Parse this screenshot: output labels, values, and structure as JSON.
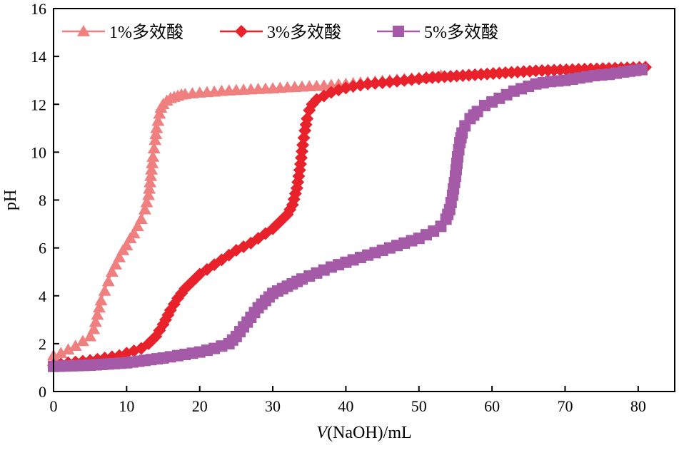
{
  "chart_data": {
    "type": "line",
    "title": "",
    "xlabel_italic": "V",
    "xlabel_rest": "(NaOH)/mL",
    "ylabel": "pH",
    "xlim": [
      0,
      85
    ],
    "ylim": [
      0,
      16
    ],
    "xticks": [
      0,
      10,
      20,
      30,
      40,
      50,
      60,
      70,
      80
    ],
    "yticks": [
      0,
      2,
      4,
      6,
      8,
      10,
      12,
      14,
      16
    ],
    "xtick_labels": [
      "0",
      "10",
      "20",
      "30",
      "40",
      "50",
      "60",
      "70",
      "80"
    ],
    "ytick_labels": [
      "0",
      "2",
      "4",
      "6",
      "8",
      "10",
      "12",
      "14",
      "16"
    ],
    "grid": false,
    "legend_position": "top-left",
    "series": [
      {
        "name": "1%多效酸",
        "color": "#f08080",
        "marker": "triangle",
        "x": [
          0,
          1,
          2,
          3,
          4,
          5,
          5.5,
          6,
          6.5,
          7,
          7.5,
          8,
          8.5,
          9,
          9.5,
          10,
          10.5,
          11,
          11.5,
          12,
          12.5,
          13,
          13.3,
          13.6,
          13.9,
          14.1,
          14.3,
          14.5,
          14.7,
          15,
          15.5,
          16,
          16.5,
          17,
          17.5,
          18,
          19,
          20,
          21,
          22,
          23,
          24,
          26,
          28,
          30,
          32,
          34,
          36,
          38,
          40,
          42,
          44,
          46,
          48,
          50,
          52,
          53
        ],
        "y": [
          1.5,
          1.6,
          1.75,
          1.9,
          2.1,
          2.3,
          2.6,
          3.2,
          3.8,
          4.2,
          4.6,
          5.0,
          5.3,
          5.6,
          5.9,
          6.1,
          6.4,
          6.6,
          6.9,
          7.2,
          7.6,
          8.2,
          9.0,
          9.8,
          10.5,
          11.0,
          11.3,
          11.6,
          11.85,
          12.0,
          12.15,
          12.25,
          12.3,
          12.35,
          12.4,
          12.42,
          12.45,
          12.48,
          12.5,
          12.52,
          12.55,
          12.57,
          12.6,
          12.63,
          12.66,
          12.7,
          12.73,
          12.76,
          12.8,
          12.85,
          12.9,
          12.95,
          13.0,
          13.05,
          13.1,
          13.15,
          13.2
        ]
      },
      {
        "name": "3%多效酸",
        "color": "#e8212b",
        "marker": "diamond",
        "x": [
          0,
          2,
          5,
          7,
          9,
          10,
          11,
          12,
          13,
          14,
          15,
          16,
          17,
          18,
          19,
          20,
          21,
          22,
          23,
          24,
          25,
          26,
          27,
          28,
          29,
          30,
          31,
          32,
          32.7,
          33.3,
          33.8,
          34.1,
          34.4,
          34.7,
          35.0,
          35.4,
          36,
          37,
          38,
          39,
          40,
          41,
          42,
          43,
          45,
          48,
          51,
          56,
          61,
          66,
          71,
          76,
          81
        ],
        "y": [
          1.1,
          1.2,
          1.3,
          1.4,
          1.5,
          1.6,
          1.7,
          1.8,
          2.0,
          2.3,
          2.8,
          3.4,
          3.9,
          4.3,
          4.6,
          4.9,
          5.1,
          5.3,
          5.5,
          5.7,
          5.9,
          6.05,
          6.2,
          6.4,
          6.6,
          6.8,
          7.1,
          7.4,
          7.8,
          8.5,
          9.5,
          10.3,
          10.9,
          11.4,
          11.75,
          12.0,
          12.2,
          12.35,
          12.5,
          12.6,
          12.68,
          12.75,
          12.8,
          12.85,
          12.9,
          13.0,
          13.1,
          13.2,
          13.3,
          13.4,
          13.45,
          13.5,
          13.55
        ]
      },
      {
        "name": "5%多效酸",
        "color": "#a55aa8",
        "marker": "square",
        "x": [
          0,
          5,
          10,
          15,
          17,
          20,
          22,
          24,
          25,
          26,
          27,
          28,
          29,
          30,
          32,
          34,
          36,
          38,
          40,
          42,
          44,
          46,
          48,
          50,
          51,
          52,
          53,
          53.7,
          54.2,
          54.6,
          55.0,
          55.3,
          55.6,
          55.9,
          56.3,
          57,
          58,
          59,
          60,
          61,
          62,
          63,
          64,
          65,
          66,
          68,
          70,
          72,
          74,
          76,
          78,
          80.5
        ],
        "y": [
          1.05,
          1.1,
          1.2,
          1.4,
          1.5,
          1.65,
          1.8,
          2.0,
          2.3,
          2.7,
          3.1,
          3.5,
          3.8,
          4.1,
          4.4,
          4.7,
          4.95,
          5.2,
          5.4,
          5.6,
          5.8,
          6.0,
          6.2,
          6.4,
          6.55,
          6.7,
          6.9,
          7.2,
          7.6,
          8.2,
          9.0,
          9.8,
          10.4,
          10.8,
          11.1,
          11.4,
          11.7,
          11.95,
          12.1,
          12.25,
          12.4,
          12.55,
          12.65,
          12.75,
          12.85,
          12.95,
          13.0,
          13.1,
          13.2,
          13.25,
          13.35,
          13.45
        ]
      }
    ]
  }
}
